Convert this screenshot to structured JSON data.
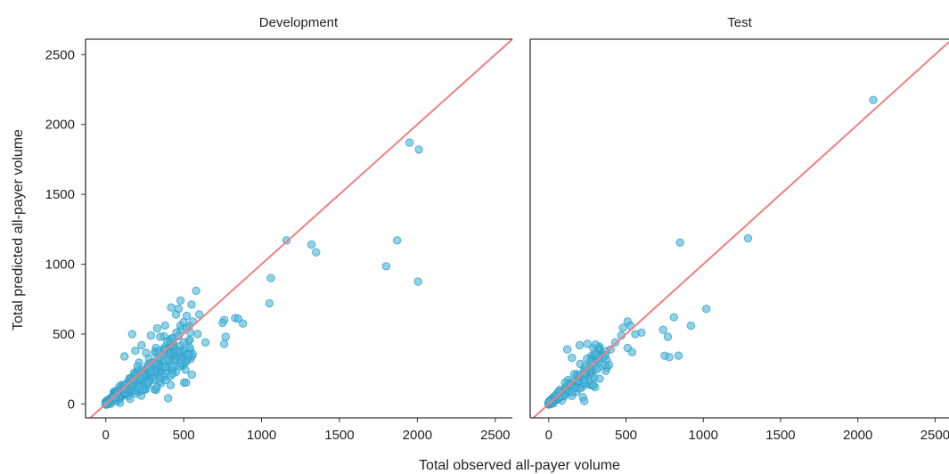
{
  "figure": {
    "ylabel": "Total predicted all-payer volume",
    "xlabel": "Total observed all-payer volume"
  },
  "colors": {
    "point": "#4fb6d9",
    "point_stroke": "#2a9ec8",
    "identity_line": "#f08080",
    "axis": "#333333"
  },
  "chart_data": [
    {
      "type": "scatter",
      "title": "Development",
      "xlabel": "Total observed all-payer volume",
      "ylabel": "Total predicted all-payer volume",
      "xlim": [
        -130,
        2610
      ],
      "ylim": [
        -100,
        2610
      ],
      "xticks": [
        0,
        500,
        1000,
        1500,
        2000,
        2500
      ],
      "yticks": [
        0,
        500,
        1000,
        1500,
        2000,
        2500
      ],
      "reference_line": "y = x",
      "grid": false,
      "outliers": [
        [
          1950,
          1870
        ],
        [
          2010,
          1820
        ],
        [
          1160,
          1170
        ],
        [
          1320,
          1140
        ],
        [
          1350,
          1085
        ],
        [
          1870,
          1170
        ],
        [
          1800,
          985
        ],
        [
          2005,
          875
        ],
        [
          1060,
          900
        ],
        [
          1050,
          720
        ],
        [
          830,
          615
        ],
        [
          850,
          610
        ],
        [
          880,
          575
        ],
        [
          760,
          600
        ],
        [
          750,
          580
        ],
        [
          770,
          480
        ],
        [
          760,
          430
        ],
        [
          640,
          440
        ],
        [
          580,
          810
        ],
        [
          480,
          740
        ],
        [
          420,
          690
        ],
        [
          450,
          640
        ],
        [
          520,
          630
        ],
        [
          560,
          590
        ],
        [
          600,
          640
        ],
        [
          590,
          500
        ],
        [
          540,
          460
        ],
        [
          500,
          440
        ],
        [
          470,
          380
        ],
        [
          480,
          290
        ],
        [
          430,
          470
        ],
        [
          350,
          480
        ],
        [
          330,
          540
        ],
        [
          290,
          490
        ],
        [
          170,
          500
        ],
        [
          230,
          420
        ],
        [
          400,
          40
        ],
        [
          270,
          150
        ],
        [
          120,
          340
        ],
        [
          190,
          380
        ]
      ],
      "cluster": {
        "count": 420,
        "max_x": 560,
        "slope": 0.82,
        "spread": 0.32,
        "seed": 7
      }
    },
    {
      "type": "scatter",
      "title": "Test",
      "xlabel": "Total observed all-payer volume",
      "ylabel": "Total predicted all-payer volume",
      "xlim": [
        -120,
        2590
      ],
      "ylim": [
        -100,
        2610
      ],
      "xticks": [
        0,
        500,
        1000,
        1500,
        2000,
        2500
      ],
      "yticks": [
        0,
        500,
        1000,
        1500,
        2000,
        2500
      ],
      "reference_line": "y = x",
      "grid": false,
      "outliers": [
        [
          2100,
          2175
        ],
        [
          1290,
          1185
        ],
        [
          850,
          1155
        ],
        [
          1020,
          680
        ],
        [
          920,
          560
        ],
        [
          810,
          620
        ],
        [
          770,
          480
        ],
        [
          740,
          530
        ],
        [
          750,
          345
        ],
        [
          780,
          335
        ],
        [
          840,
          345
        ],
        [
          600,
          510
        ],
        [
          560,
          500
        ],
        [
          510,
          590
        ],
        [
          530,
          560
        ],
        [
          480,
          545
        ],
        [
          470,
          490
        ],
        [
          430,
          440
        ],
        [
          400,
          390
        ],
        [
          510,
          400
        ],
        [
          540,
          370
        ],
        [
          300,
          360
        ],
        [
          270,
          300
        ],
        [
          250,
          430
        ],
        [
          200,
          420
        ],
        [
          120,
          390
        ],
        [
          230,
          20
        ],
        [
          330,
          180
        ],
        [
          390,
          280
        ],
        [
          150,
          330
        ]
      ],
      "cluster": {
        "count": 180,
        "max_x": 380,
        "slope": 0.9,
        "spread": 0.3,
        "seed": 23
      }
    }
  ]
}
